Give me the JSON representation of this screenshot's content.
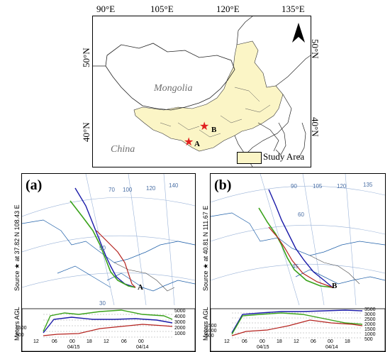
{
  "top_map": {
    "lon_labels": [
      "90°E",
      "105°E",
      "120°E",
      "135°E"
    ],
    "lat_labels_left": [
      "50°N",
      "40°N"
    ],
    "lat_labels_right": [
      "50°N",
      "40°N"
    ],
    "country_labels": {
      "mongolia": "Mongolia",
      "china": "China"
    },
    "point_labels": {
      "a": "A",
      "b": "B"
    },
    "legend_label": "Study Area",
    "colors": {
      "study_area": "#fbf5c6",
      "star": "#e02020"
    }
  },
  "panel_a": {
    "label": "(a)",
    "source_text": "Source ★ at  37.82 N  108.43 E",
    "grid_labels": [
      "70",
      "100",
      "120",
      "140",
      "50",
      "30"
    ],
    "point_label": "A",
    "axis_title": "Meters AGL",
    "y_ticks_left": [
      "1500",
      "500"
    ],
    "y_ticks_right": [
      "5000",
      "4000",
      "3000",
      "2000",
      "1000"
    ],
    "x_ticks": [
      "12",
      "06",
      "00",
      "18",
      "12",
      "06",
      "00"
    ],
    "date_labels": [
      "04/15",
      "04/14"
    ]
  },
  "panel_b": {
    "label": "(b)",
    "source_text": "Source ★ at  40.81 N  111.67 E",
    "grid_labels": [
      "90",
      "105",
      "120",
      "135",
      "60",
      "45"
    ],
    "point_label": "B",
    "axis_title": "Meters AGL",
    "y_ticks_left": [
      "1500",
      "1000",
      "500"
    ],
    "y_ticks_right": [
      "3500",
      "3000",
      "2500",
      "2000",
      "1500",
      "1000",
      "500"
    ],
    "x_ticks": [
      "12",
      "06",
      "00",
      "18",
      "12",
      "06",
      "00",
      "18"
    ],
    "date_labels": [
      "04/15",
      "04/14"
    ]
  },
  "trajectory_colors": {
    "red": "#b5231f",
    "blue": "#1a1aa8",
    "green": "#3aa21a"
  }
}
